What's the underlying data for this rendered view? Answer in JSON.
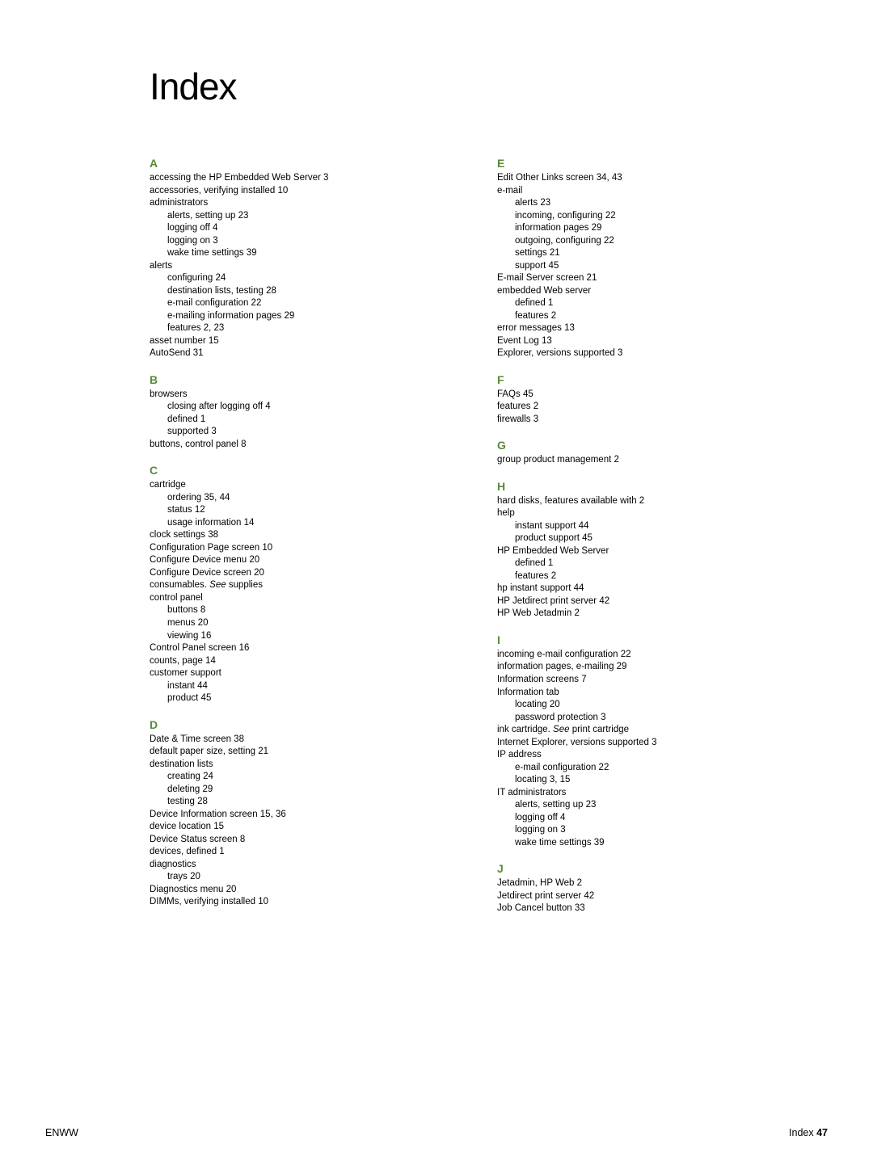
{
  "colors": {
    "heading": "#5a8a3a",
    "text": "#000000",
    "background": "#ffffff"
  },
  "typography": {
    "title_fontsize": 46,
    "letter_fontsize": 14,
    "entry_fontsize": 11.5,
    "footer_fontsize": 12.5,
    "font_family": "Arial, Helvetica, sans-serif"
  },
  "title": "Index",
  "footer": {
    "left": "ENWW",
    "right_label": "Index",
    "right_page": "47"
  },
  "letters": {
    "A": "A",
    "B": "B",
    "C": "C",
    "D": "D",
    "E": "E",
    "F": "F",
    "G": "G",
    "H": "H",
    "I": "I",
    "J": "J"
  },
  "col1": {
    "a1": "accessing the HP Embedded Web Server  3",
    "a2": "accessories, verifying installed  10",
    "a3": "administrators",
    "a3s1": "alerts, setting up  23",
    "a3s2": "logging off  4",
    "a3s3": "logging on  3",
    "a3s4": "wake time settings  39",
    "a4": "alerts",
    "a4s1": "configuring  24",
    "a4s2": "destination lists, testing  28",
    "a4s3": "e-mail configuration  22",
    "a4s4": "e-mailing information pages  29",
    "a4s5": "features  2,  23",
    "a5": "asset number  15",
    "a6": "AutoSend  31",
    "b1": "browsers",
    "b1s1": "closing after logging off  4",
    "b1s2": "defined  1",
    "b1s3": "supported  3",
    "b2": "buttons, control panel  8",
    "c1": "cartridge",
    "c1s1": "ordering  35,  44",
    "c1s2": "status  12",
    "c1s3": "usage information  14",
    "c2": "clock settings  38",
    "c3": "Configuration Page screen  10",
    "c4": "Configure Device menu  20",
    "c5": "Configure Device screen  20",
    "c6a": "consumables. ",
    "c6b": "See",
    "c6c": " supplies",
    "c7": "control panel",
    "c7s1": "buttons  8",
    "c7s2": "menus  20",
    "c7s3": "viewing  16",
    "c8": "Control Panel screen  16",
    "c9": "counts, page  14",
    "c10": "customer support",
    "c10s1": "instant  44",
    "c10s2": "product  45",
    "d1": "Date & Time screen  38",
    "d2": "default paper size, setting  21",
    "d3": "destination lists",
    "d3s1": "creating  24",
    "d3s2": "deleting  29",
    "d3s3": "testing  28",
    "d4": "Device Information screen  15,  36",
    "d5": "device location  15",
    "d6": "Device Status screen  8",
    "d7": "devices, defined  1",
    "d8": "diagnostics",
    "d8s1": "trays  20",
    "d9": "Diagnostics menu  20",
    "d10": "DIMMs, verifying installed  10"
  },
  "col2": {
    "e1": "Edit Other Links screen  34,  43",
    "e2": "e-mail",
    "e2s1": "alerts  23",
    "e2s2": "incoming, configuring  22",
    "e2s3": "information pages  29",
    "e2s4": "outgoing, configuring  22",
    "e2s5": "settings  21",
    "e2s6": "support  45",
    "e3": "E-mail Server screen  21",
    "e4": "embedded Web server",
    "e4s1": "defined  1",
    "e4s2": "features  2",
    "e5": "error messages  13",
    "e6": "Event Log  13",
    "e7": "Explorer, versions supported  3",
    "f1": "FAQs  45",
    "f2": "features  2",
    "f3": "firewalls  3",
    "g1": "group product management  2",
    "h1": "hard disks, features available with  2",
    "h2": "help",
    "h2s1": "instant support  44",
    "h2s2": "product support  45",
    "h3": "HP Embedded Web Server",
    "h3s1": "defined  1",
    "h3s2": "features  2",
    "h4": "hp instant support  44",
    "h5": "HP Jetdirect print server  42",
    "h6": "HP Web Jetadmin  2",
    "i1": "incoming e-mail configuration  22",
    "i2": "information pages, e-mailing  29",
    "i3": "Information screens  7",
    "i4": "Information tab",
    "i4s1": "locating  20",
    "i4s2": "password protection  3",
    "i5a": "ink cartridge. ",
    "i5b": "See",
    "i5c": " print cartridge",
    "i6": "Internet Explorer, versions supported  3",
    "i7": "IP address",
    "i7s1": "e-mail configuration  22",
    "i7s2": "locating  3,  15",
    "i8": "IT administrators",
    "i8s1": "alerts, setting up  23",
    "i8s2": "logging off  4",
    "i8s3": "logging on  3",
    "i8s4": "wake time settings  39",
    "j1": "Jetadmin, HP Web  2",
    "j2": "Jetdirect print server  42",
    "j3": "Job Cancel button  33"
  }
}
